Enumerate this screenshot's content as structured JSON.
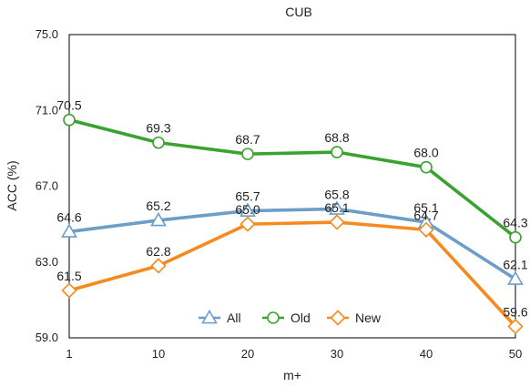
{
  "chart_data": {
    "type": "line",
    "title": "CUB",
    "xlabel": "m+",
    "ylabel": "ACC (%)",
    "categories": [
      "1",
      "10",
      "20",
      "30",
      "40",
      "50"
    ],
    "ylim": [
      59.0,
      75.0
    ],
    "yticks": [
      "59.0",
      "63.0",
      "67.0",
      "71.0",
      "75.0"
    ],
    "grid": false,
    "legend": "bottom-center",
    "series": [
      {
        "name": "All",
        "values": [
          64.6,
          65.2,
          65.7,
          65.8,
          65.1,
          62.1
        ],
        "labels": [
          "64.6",
          "65.2",
          "65.7",
          "65.8",
          "65.1",
          "62.1"
        ],
        "color": "#6d9ec7",
        "marker": "triangle"
      },
      {
        "name": "Old",
        "values": [
          70.5,
          69.3,
          68.7,
          68.8,
          68.0,
          64.3
        ],
        "labels": [
          "70.5",
          "69.3",
          "68.7",
          "68.8",
          "68.0",
          "64.3"
        ],
        "color": "#3aa22f",
        "marker": "circle"
      },
      {
        "name": "New",
        "values": [
          61.5,
          62.8,
          65.0,
          65.1,
          64.7,
          59.6
        ],
        "labels": [
          "61.5",
          "62.8",
          "65.0",
          "65.1",
          "64.7",
          "59.6"
        ],
        "color": "#f68a1e",
        "marker": "diamond"
      }
    ]
  }
}
